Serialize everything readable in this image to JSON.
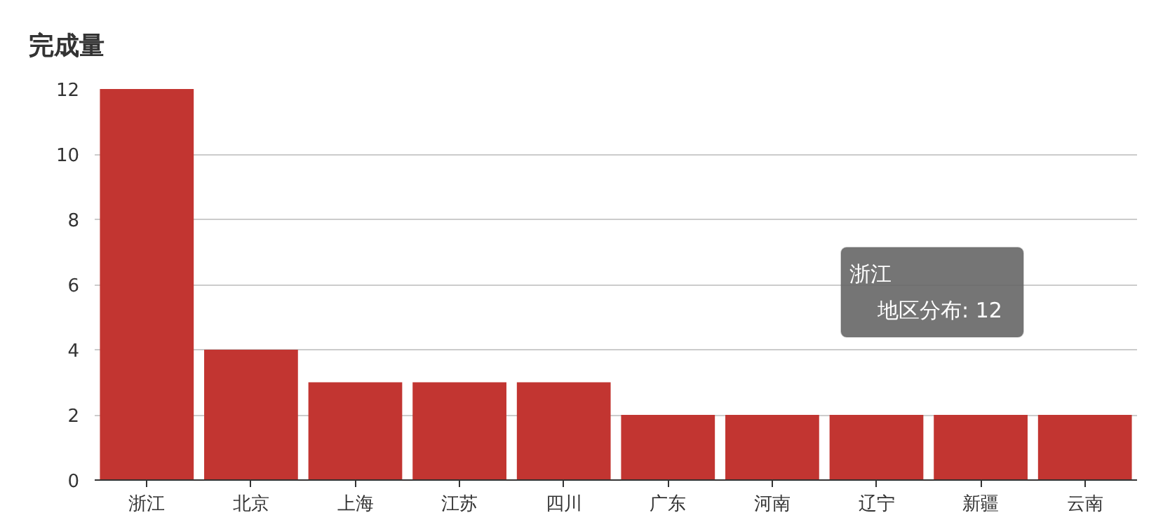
{
  "chart_data": {
    "type": "bar",
    "title": "完成量",
    "categories": [
      "浙江",
      "北京",
      "上海",
      "江苏",
      "四川",
      "广东",
      "河南",
      "辽宁",
      "新疆",
      "云南"
    ],
    "series": [
      {
        "color": "#c23531",
        "values": [
          12,
          4,
          3,
          3,
          3,
          2,
          2,
          2,
          2,
          2
        ]
      }
    ],
    "ylim": [
      0,
      12
    ],
    "yticks": [
      0,
      2,
      4,
      6,
      8,
      10,
      12
    ],
    "grid": "y",
    "annotations": [
      "浙江",
      "地区分布: 12"
    ]
  }
}
